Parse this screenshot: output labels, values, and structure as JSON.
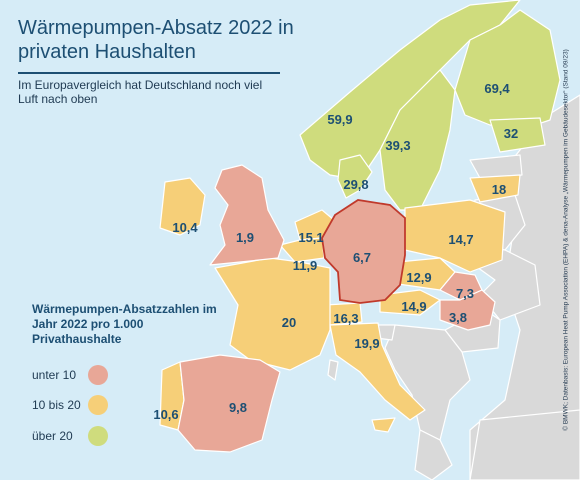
{
  "title": "Wärmepumpen-Absatz 2022 in privaten Haushalten",
  "subtitle": "Im Europavergleich hat Deutschland noch viel Luft nach oben",
  "legend": {
    "title": "Wärmepumpen-Absatzzahlen im Jahr 2022 pro 1.000 Privathaushalte",
    "items": [
      {
        "label": "unter 10",
        "color": "#e8a797"
      },
      {
        "label": "10 bis 20",
        "color": "#f6cf78"
      },
      {
        "label": "über 20",
        "color": "#cfdc7d"
      }
    ]
  },
  "credit": "© BMWK; Datenbasis: European Heat Pump Association (EHPA) & dena-Analyse „Wärmepumpen im Gebäudesektor“ (Stand 09/23)",
  "colors": {
    "sea": "#d6ecf7",
    "non_data_land": "#d9d9d9",
    "border": "#ffffff",
    "label_text": "#1d4f73",
    "highlight_border": "#c0392b"
  },
  "values": {
    "norway": "59,9",
    "sweden": "39,3",
    "finland": "69,4",
    "estonia": "32",
    "denmark": "29,8",
    "lithuania": "18",
    "ireland": "10,4",
    "uk": "1,9",
    "netherlands": "15,1",
    "belgium": "11,9",
    "germany": "6,7",
    "poland": "14,7",
    "czechia": "12,9",
    "austria": "14,9",
    "slovakia": "7,3",
    "hungary": "3,8",
    "switzerland": "16,3",
    "france": "20",
    "italy": "19,9",
    "portugal": "10,6",
    "spain": "9,8"
  }
}
